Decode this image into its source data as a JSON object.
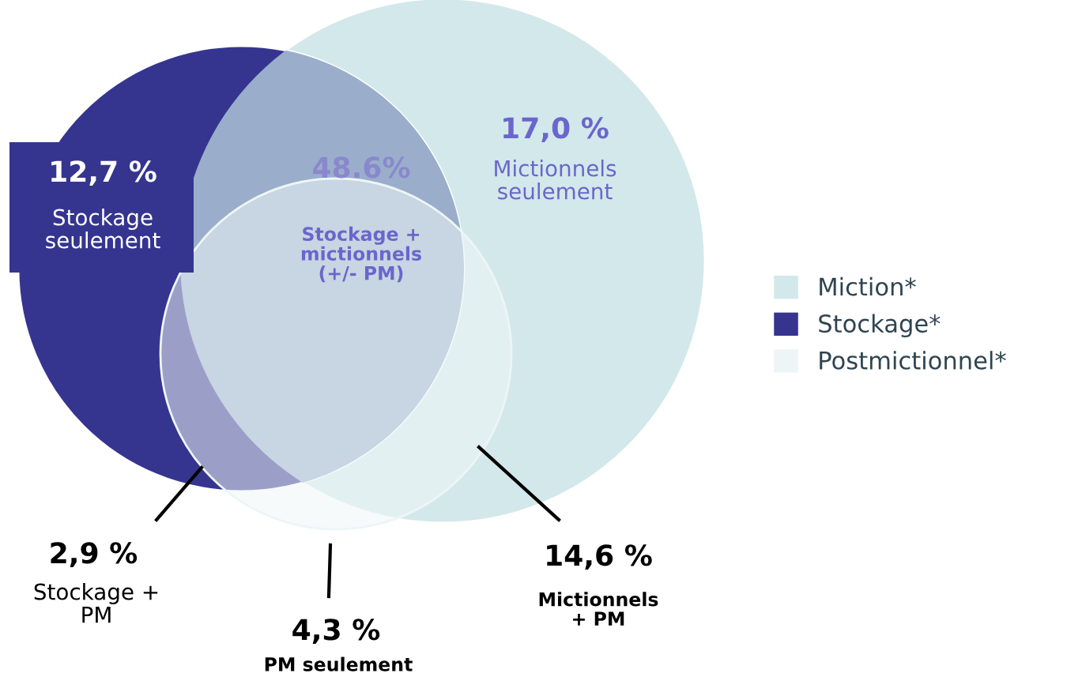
{
  "chart_data": {
    "type": "other",
    "categories": [
      "Stockage\nseulement",
      "Mictionnels\nseulement",
      "Stockage +\nmictionnels\n(+/- PM)",
      "Stockage +\nPM",
      "PM seulement",
      "Mictionnels\n+ PM"
    ],
    "series": [
      {
        "name": "Miction*",
        "color": "#d3e8ea",
        "values": [
          null,
          17.0,
          null,
          null,
          null,
          14.6
        ],
        "value_labels": [
          null,
          "17,0 %",
          null,
          null,
          null,
          "14,6 %"
        ]
      },
      {
        "name": "Stockage*",
        "color": "#353590",
        "values": [
          12.7,
          null,
          48.6,
          2.9,
          null,
          null
        ],
        "value_labels": [
          "12,7 %",
          null,
          "48.6%",
          "2,9 %",
          null,
          null
        ]
      },
      {
        "name": "Postmictionnel*",
        "color": "#eef5f6",
        "values": [
          null,
          null,
          null,
          null,
          4.3,
          null
        ],
        "value_labels": [
          null,
          null,
          null,
          null,
          "4,3 %",
          null
        ]
      }
    ],
    "legend": "right"
  }
}
